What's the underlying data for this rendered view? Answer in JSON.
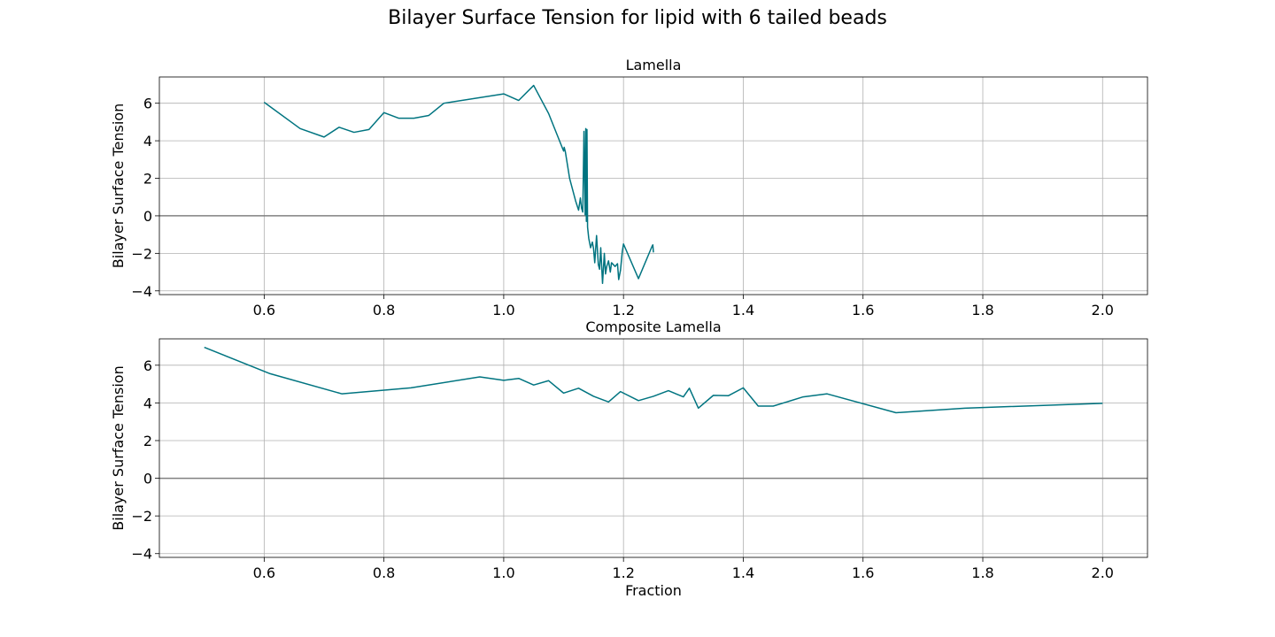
{
  "figure": {
    "title": "Bilayer Surface Tension for lipid with 6 tailed beads"
  },
  "colors": {
    "series": "#007480",
    "zero_line": "#808080",
    "grid": "#b0b0b0",
    "axes": "#000000"
  },
  "chart_data": [
    {
      "type": "line",
      "title": "Lamella",
      "xlabel": "",
      "ylabel": "Bilayer Surface Tension",
      "xlim": [
        0.425,
        2.075
      ],
      "ylim": [
        -4.2,
        7.4
      ],
      "xticks": [
        0.6,
        0.8,
        1.0,
        1.2,
        1.4,
        1.6,
        1.8,
        2.0
      ],
      "xtick_labels": [
        "0.6",
        "0.8",
        "1.0",
        "1.2",
        "1.4",
        "1.6",
        "1.8",
        "2.0"
      ],
      "yticks": [
        -4,
        -2,
        0,
        2,
        4,
        6
      ],
      "ytick_labels": [
        "−4",
        "−2",
        "0",
        "2",
        "4",
        "6"
      ],
      "grid": true,
      "hline": 0,
      "x": [
        0.6,
        0.66,
        0.7,
        0.725,
        0.75,
        0.775,
        0.8,
        0.825,
        0.85,
        0.875,
        0.9,
        1.0,
        1.025,
        1.05,
        1.075,
        1.1,
        1.101,
        1.103,
        1.11,
        1.12,
        1.125,
        1.128,
        1.13,
        1.132,
        1.134,
        1.136,
        1.137,
        1.138,
        1.139,
        1.14,
        1.142,
        1.145,
        1.148,
        1.15,
        1.152,
        1.155,
        1.158,
        1.16,
        1.162,
        1.165,
        1.168,
        1.17,
        1.172,
        1.175,
        1.178,
        1.18,
        1.183,
        1.186,
        1.19,
        1.192,
        1.195,
        1.198,
        1.2,
        1.225,
        1.248,
        1.249,
        1.25
      ],
      "y": [
        6.05,
        4.65,
        4.2,
        4.72,
        4.45,
        4.6,
        5.5,
        5.2,
        5.2,
        5.35,
        6.0,
        6.5,
        6.15,
        6.95,
        5.45,
        3.45,
        3.65,
        3.4,
        2.0,
        0.8,
        0.3,
        0.95,
        0.4,
        0.2,
        4.5,
        0.05,
        4.65,
        -0.3,
        4.6,
        -0.6,
        -1.2,
        -1.7,
        -1.4,
        -1.75,
        -2.5,
        -1.05,
        -2.6,
        -2.85,
        -1.7,
        -3.6,
        -2.0,
        -3.1,
        -2.7,
        -2.4,
        -3.0,
        -2.5,
        -2.6,
        -2.7,
        -2.55,
        -3.4,
        -2.9,
        -1.9,
        -1.5,
        -3.35,
        -1.6,
        -1.55,
        -1.95
      ]
    },
    {
      "type": "line",
      "title": "Composite Lamella",
      "xlabel": "Fraction",
      "ylabel": "Bilayer Surface Tension",
      "xlim": [
        0.425,
        2.075
      ],
      "ylim": [
        -4.2,
        7.4
      ],
      "xticks": [
        0.6,
        0.8,
        1.0,
        1.2,
        1.4,
        1.6,
        1.8,
        2.0
      ],
      "xtick_labels": [
        "0.6",
        "0.8",
        "1.0",
        "1.2",
        "1.4",
        "1.6",
        "1.8",
        "2.0"
      ],
      "yticks": [
        -4,
        -2,
        0,
        2,
        4,
        6
      ],
      "ytick_labels": [
        "−4",
        "−2",
        "0",
        "2",
        "4",
        "6"
      ],
      "grid": true,
      "hline": 0,
      "x": [
        0.5,
        0.61,
        0.73,
        0.845,
        0.96,
        1.0,
        1.025,
        1.05,
        1.075,
        1.1,
        1.125,
        1.15,
        1.175,
        1.195,
        1.225,
        1.25,
        1.275,
        1.3,
        1.31,
        1.325,
        1.35,
        1.375,
        1.4,
        1.425,
        1.45,
        1.5,
        1.54,
        1.655,
        1.77,
        2.0
      ],
      "y": [
        6.95,
        5.55,
        4.48,
        4.8,
        5.38,
        5.2,
        5.3,
        4.95,
        5.18,
        4.52,
        4.78,
        4.35,
        4.05,
        4.6,
        4.12,
        4.35,
        4.65,
        4.32,
        4.78,
        3.72,
        4.4,
        4.38,
        4.8,
        3.83,
        3.83,
        4.32,
        4.48,
        3.48,
        3.72,
        3.98
      ]
    }
  ]
}
